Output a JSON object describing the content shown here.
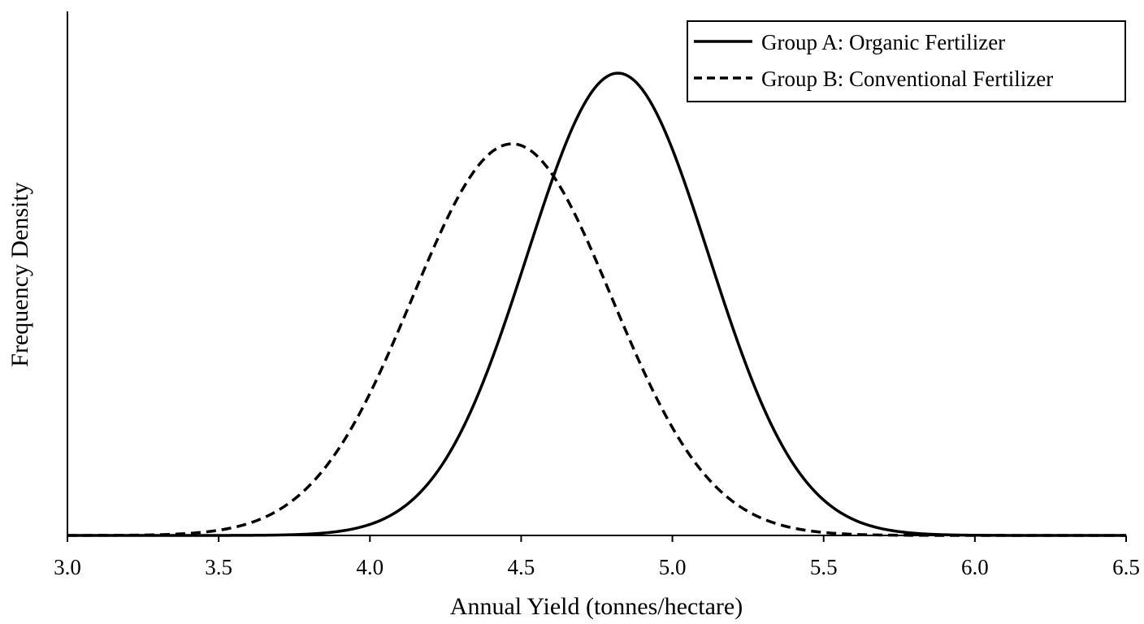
{
  "chart_data": {
    "type": "line",
    "title": "",
    "xlabel": "Annual Yield (tonnes/hectare)",
    "ylabel": "Frequency Density",
    "xlim": [
      3.0,
      6.5
    ],
    "xticks": [
      "3.0",
      "3.5",
      "4.0",
      "4.5",
      "5.0",
      "5.5",
      "6.0",
      "6.5"
    ],
    "grid": false,
    "legend_position": "top-right",
    "series": [
      {
        "name": "Group A: Organic Fertilizer",
        "style": "solid",
        "color": "#000000",
        "mean": 4.82,
        "sd": 0.3,
        "relative_peak": 1.0
      },
      {
        "name": "Group B: Conventional Fertilizer",
        "style": "dashed",
        "color": "#000000",
        "mean": 4.47,
        "sd": 0.33,
        "relative_peak": 0.847
      }
    ]
  }
}
